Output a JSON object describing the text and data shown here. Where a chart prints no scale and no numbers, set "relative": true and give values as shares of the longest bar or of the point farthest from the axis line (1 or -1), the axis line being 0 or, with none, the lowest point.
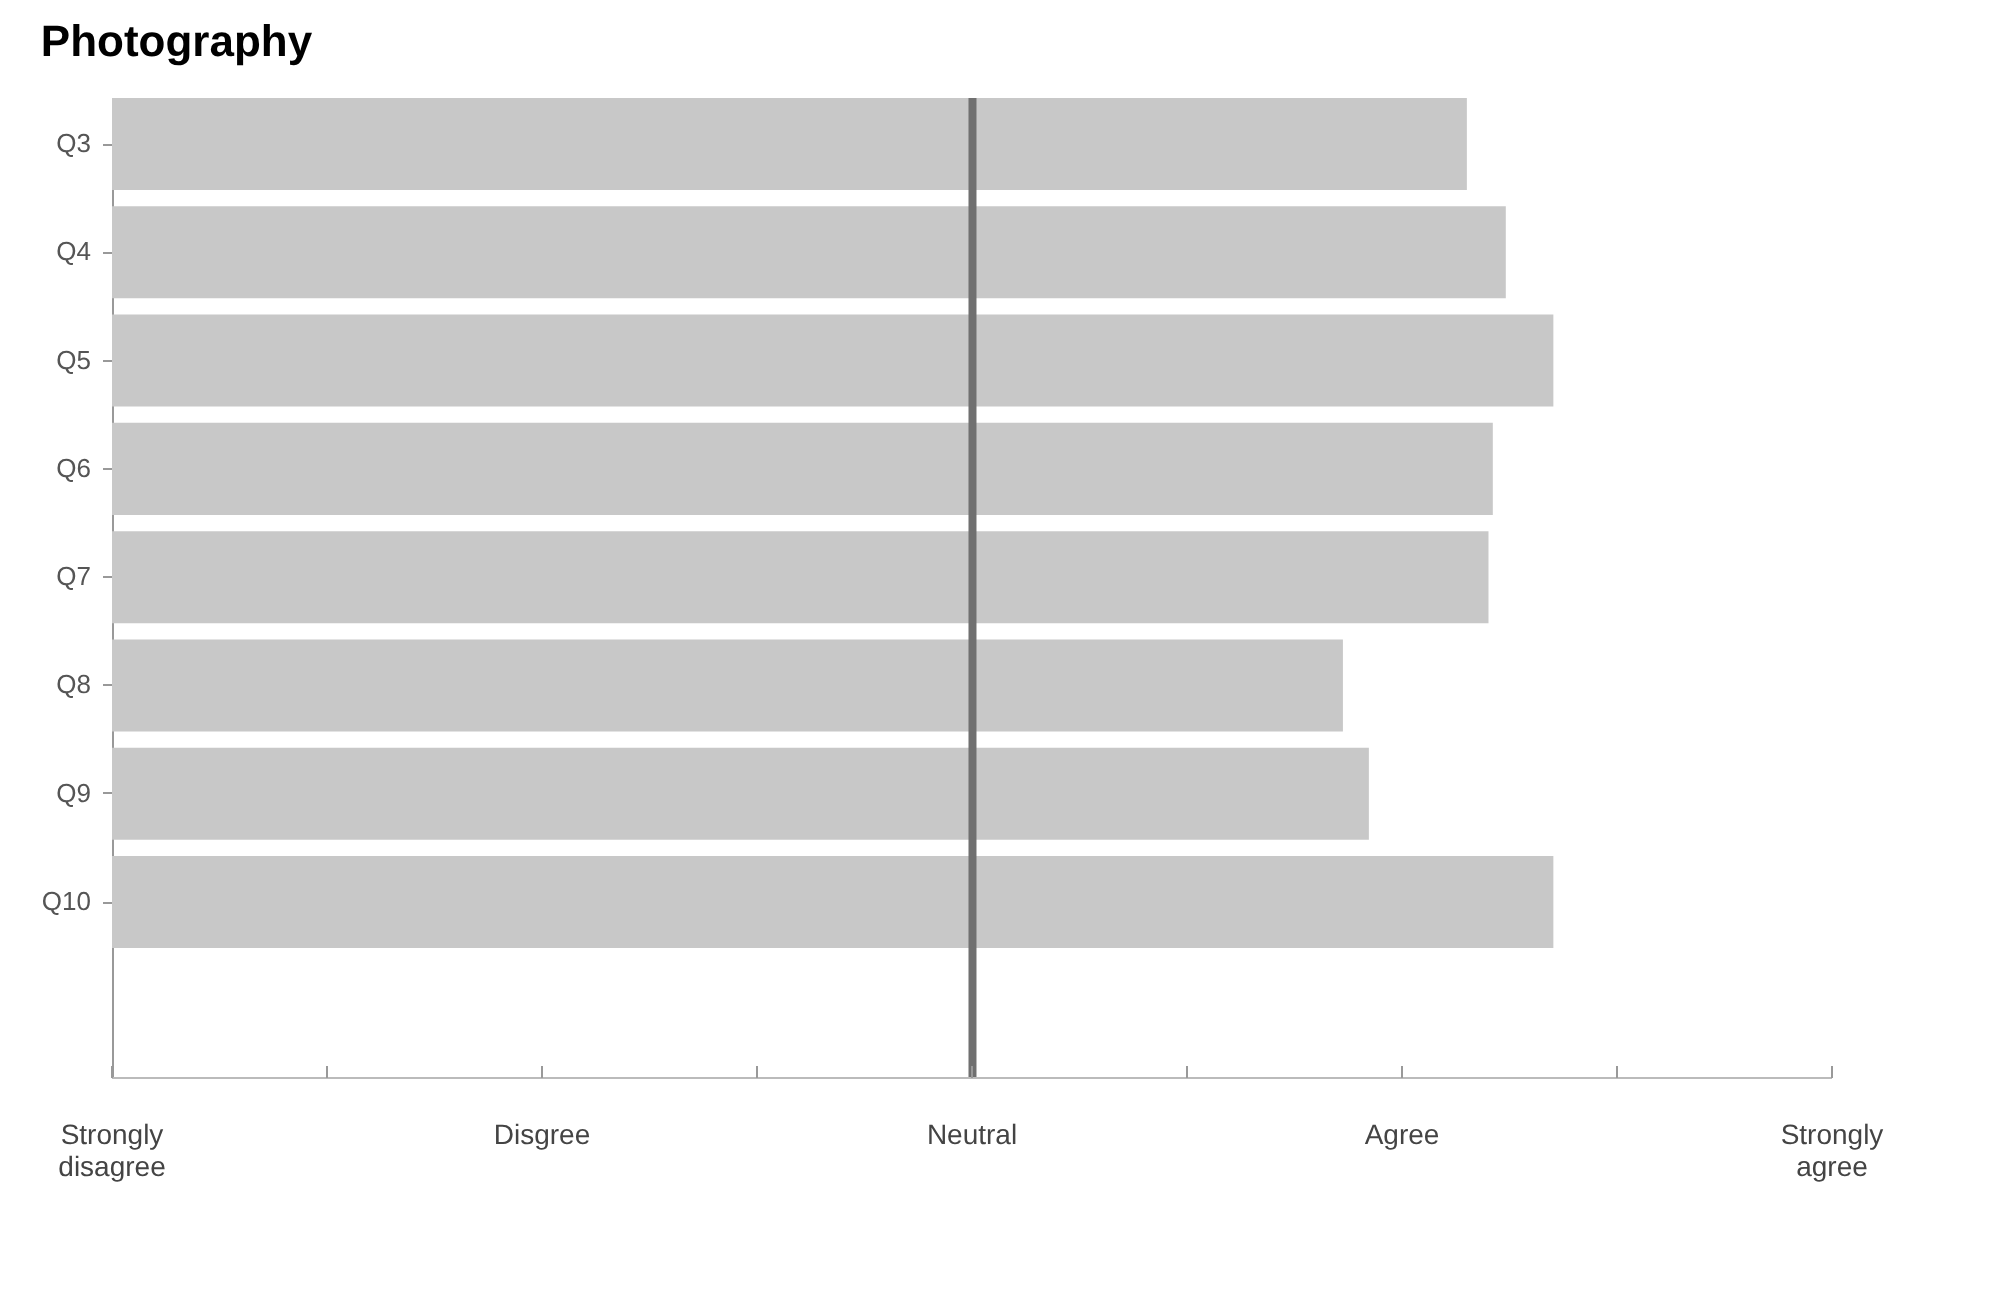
{
  "chart_data": {
    "type": "bar",
    "orientation": "horizontal",
    "title": "Photography",
    "relative": true,
    "categories": [
      "Q3",
      "Q4",
      "Q5",
      "Q6",
      "Q7",
      "Q8",
      "Q9",
      "Q10"
    ],
    "values": [
      0.94,
      0.967,
      1,
      0.958,
      0.955,
      0.854,
      0.872,
      1
    ],
    "color": "#c8c8c8",
    "annotations": [
      "Strongly disagree",
      "Disgree",
      "Neutral",
      "Agree",
      "Strongly agree"
    ],
    "ref_lines": [
      {
        "axis": "x",
        "value": 0.597,
        "color": "#707070"
      }
    ],
    "grid": false
  }
}
